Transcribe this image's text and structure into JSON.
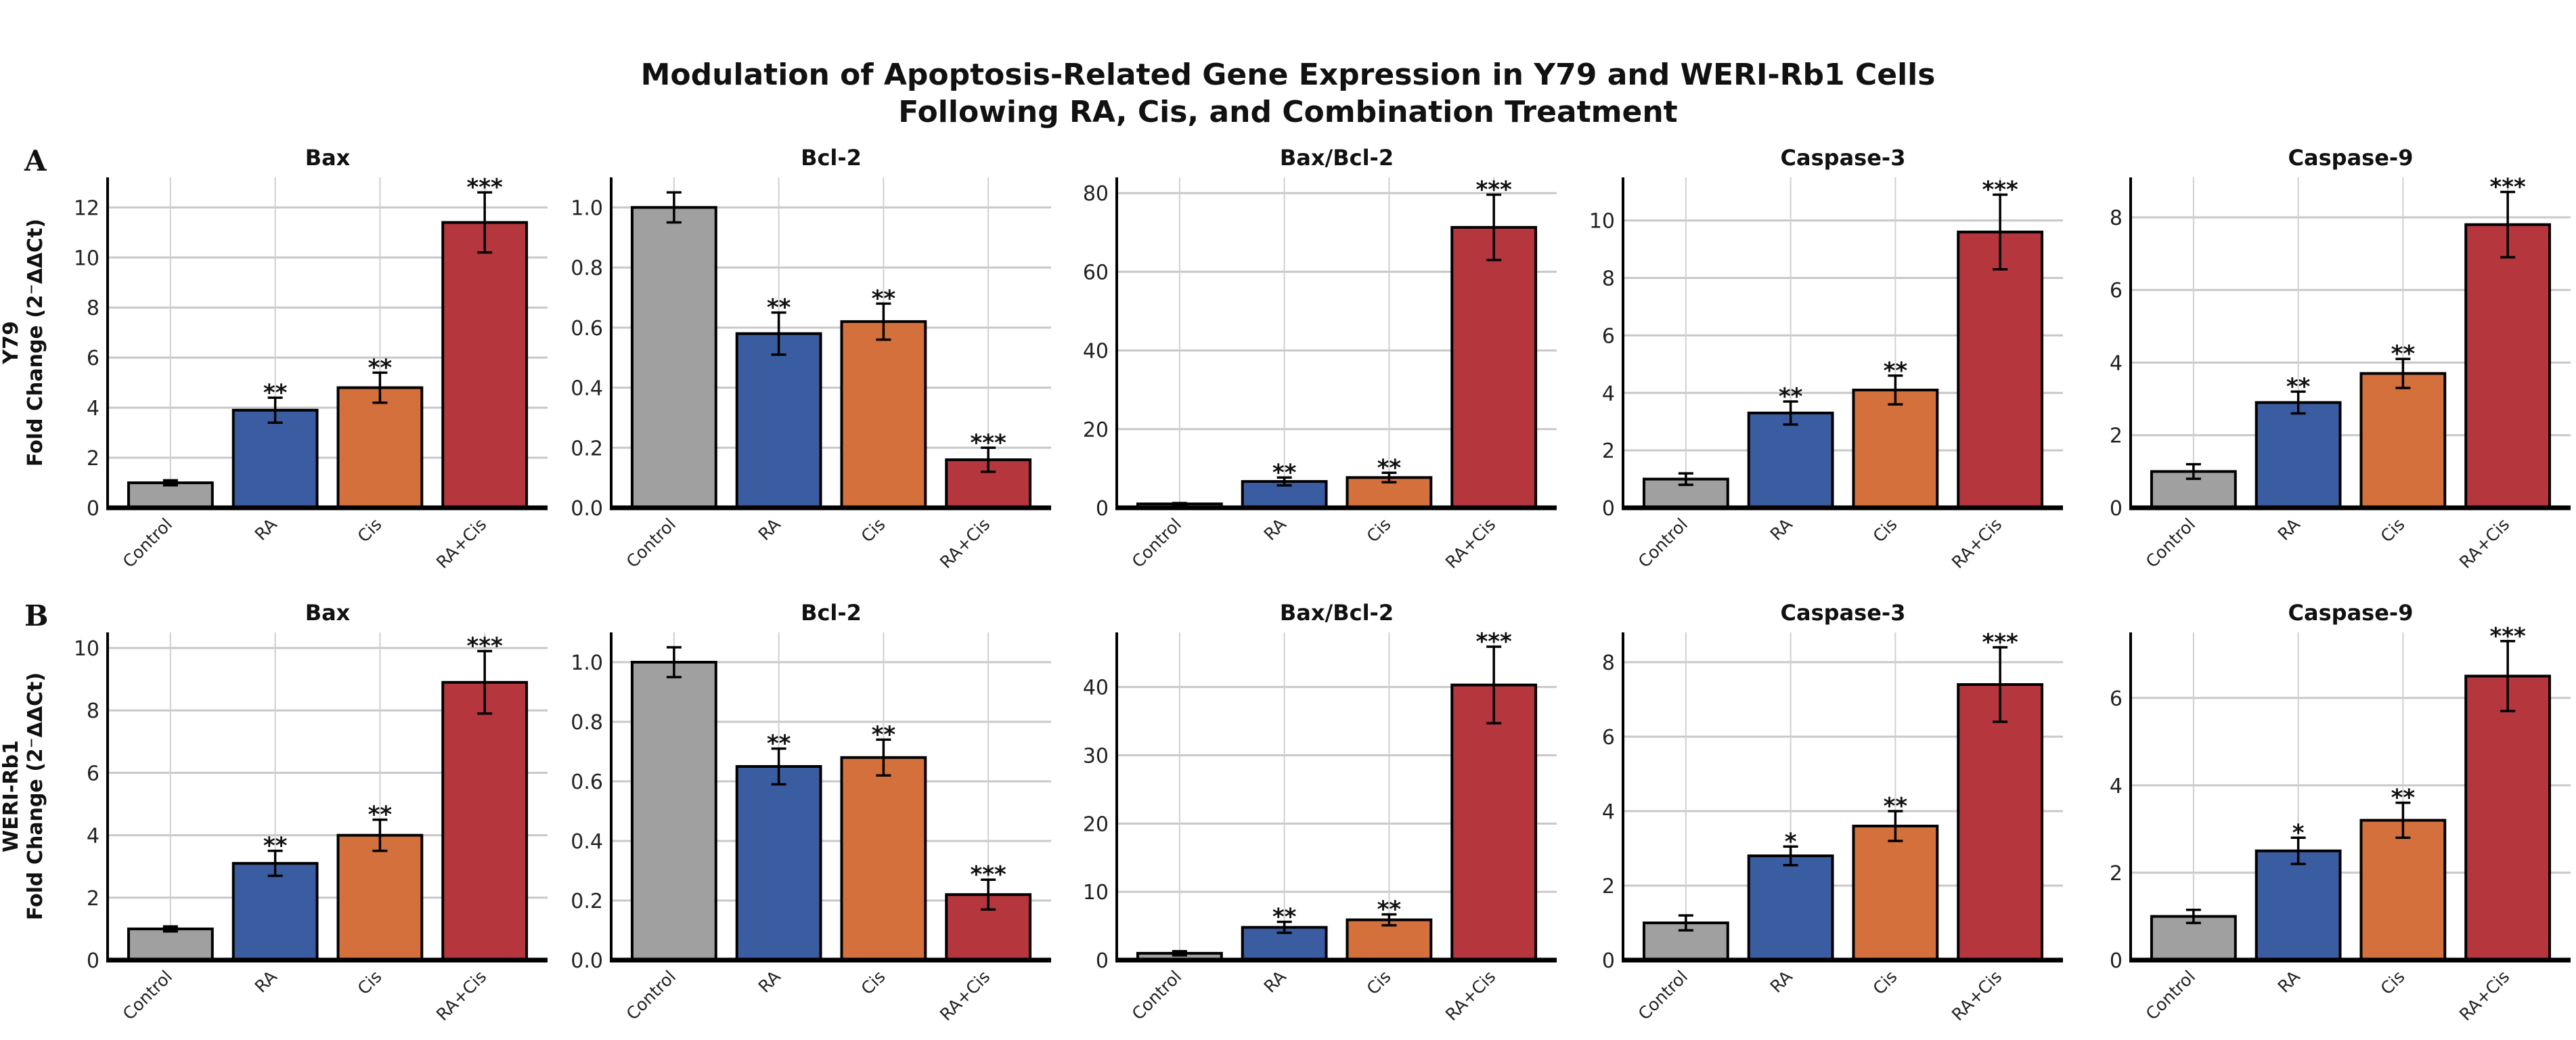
{
  "title_line1": "Modulation of Apoptosis-Related Gene Expression in Y79 and WERI-Rb1 Cells",
  "title_line2": "Following RA, Cis, and Combination Treatment",
  "colors": {
    "Control": "#a0a0a0",
    "RA": "#3a5ca0",
    "Cis": "#d4703c",
    "RA+Cis": "#b5363c"
  },
  "chart_data": [
    {
      "row_letter": "A",
      "cell_line": "Y79",
      "ylabel": "Fold Change (2⁻ΔΔCt)",
      "type": "bar",
      "panels": [
        {
          "title": "Bax",
          "categories": [
            "Control",
            "RA",
            "Cis",
            "RA+Cis"
          ],
          "values": [
            1.0,
            3.9,
            4.8,
            11.4
          ],
          "errors": [
            0.1,
            0.5,
            0.6,
            1.2
          ],
          "significance": [
            "",
            "**",
            "**",
            "***"
          ],
          "ylim": [
            0,
            13.2
          ],
          "yticks": [
            0,
            2,
            4,
            6,
            8,
            10,
            12
          ],
          "ytick_labels": [
            "0",
            "2",
            "4",
            "6",
            "8",
            "10",
            "12"
          ]
        },
        {
          "title": "Bcl-2",
          "categories": [
            "Control",
            "RA",
            "Cis",
            "RA+Cis"
          ],
          "values": [
            1.0,
            0.58,
            0.62,
            0.16
          ],
          "errors": [
            0.05,
            0.07,
            0.06,
            0.04
          ],
          "significance": [
            "",
            "**",
            "**",
            "***"
          ],
          "ylim": [
            0,
            1.1
          ],
          "yticks": [
            0,
            0.2,
            0.4,
            0.6,
            0.8,
            1.0
          ],
          "ytick_labels": [
            "0.0",
            "0.2",
            "0.4",
            "0.6",
            "0.8",
            "1.0"
          ]
        },
        {
          "title": "Bax/Bcl-2",
          "categories": [
            "Control",
            "RA",
            "Cis",
            "RA+Cis"
          ],
          "values": [
            1.0,
            6.7,
            7.7,
            71.3
          ],
          "errors": [
            0.2,
            1.0,
            1.2,
            8.3
          ],
          "significance": [
            "",
            "**",
            "**",
            "***"
          ],
          "ylim": [
            0,
            84
          ],
          "yticks": [
            0,
            20,
            40,
            60,
            80
          ],
          "ytick_labels": [
            "0",
            "20",
            "40",
            "60",
            "80"
          ]
        },
        {
          "title": "Caspase-3",
          "categories": [
            "Control",
            "RA",
            "Cis",
            "RA+Cis"
          ],
          "values": [
            1.0,
            3.3,
            4.1,
            9.6
          ],
          "errors": [
            0.2,
            0.4,
            0.5,
            1.3
          ],
          "significance": [
            "",
            "**",
            "**",
            "***"
          ],
          "ylim": [
            0,
            11.5
          ],
          "yticks": [
            0,
            2,
            4,
            6,
            8,
            10
          ],
          "ytick_labels": [
            "0",
            "2",
            "4",
            "6",
            "8",
            "10"
          ]
        },
        {
          "title": "Caspase-9",
          "categories": [
            "Control",
            "RA",
            "Cis",
            "RA+Cis"
          ],
          "values": [
            1.0,
            2.9,
            3.7,
            7.8
          ],
          "errors": [
            0.2,
            0.3,
            0.4,
            0.9
          ],
          "significance": [
            "",
            "**",
            "**",
            "***"
          ],
          "ylim": [
            0,
            9.1
          ],
          "yticks": [
            0,
            2,
            4,
            6,
            8
          ],
          "ytick_labels": [
            "0",
            "2",
            "4",
            "6",
            "8"
          ]
        }
      ]
    },
    {
      "row_letter": "B",
      "cell_line": "WERI-Rb1",
      "ylabel": "Fold Change (2⁻ΔΔCt)",
      "type": "bar",
      "panels": [
        {
          "title": "Bax",
          "categories": [
            "Control",
            "RA",
            "Cis",
            "RA+Cis"
          ],
          "values": [
            1.0,
            3.1,
            4.0,
            8.9
          ],
          "errors": [
            0.08,
            0.4,
            0.5,
            1.0
          ],
          "significance": [
            "",
            "**",
            "**",
            "***"
          ],
          "ylim": [
            0,
            10.5
          ],
          "yticks": [
            0,
            2,
            4,
            6,
            8,
            10
          ],
          "ytick_labels": [
            "0",
            "2",
            "4",
            "6",
            "8",
            "10"
          ]
        },
        {
          "title": "Bcl-2",
          "categories": [
            "Control",
            "RA",
            "Cis",
            "RA+Cis"
          ],
          "values": [
            1.0,
            0.65,
            0.68,
            0.22
          ],
          "errors": [
            0.05,
            0.06,
            0.06,
            0.05
          ],
          "significance": [
            "",
            "**",
            "**",
            "***"
          ],
          "ylim": [
            0,
            1.1
          ],
          "yticks": [
            0,
            0.2,
            0.4,
            0.6,
            0.8,
            1.0
          ],
          "ytick_labels": [
            "0.0",
            "0.2",
            "0.4",
            "0.6",
            "0.8",
            "1.0"
          ]
        },
        {
          "title": "Bax/Bcl-2",
          "categories": [
            "Control",
            "RA",
            "Cis",
            "RA+Cis"
          ],
          "values": [
            1.0,
            4.8,
            5.9,
            40.3
          ],
          "errors": [
            0.3,
            0.8,
            0.8,
            5.6
          ],
          "significance": [
            "",
            "**",
            "**",
            "***"
          ],
          "ylim": [
            0,
            48
          ],
          "yticks": [
            0,
            10,
            20,
            30,
            40
          ],
          "ytick_labels": [
            "0",
            "10",
            "20",
            "30",
            "40"
          ]
        },
        {
          "title": "Caspase-3",
          "categories": [
            "Control",
            "RA",
            "Cis",
            "RA+Cis"
          ],
          "values": [
            1.0,
            2.8,
            3.6,
            7.4
          ],
          "errors": [
            0.2,
            0.25,
            0.4,
            1.0
          ],
          "significance": [
            "",
            "*",
            "**",
            "***"
          ],
          "ylim": [
            0,
            8.8
          ],
          "yticks": [
            0,
            2,
            4,
            6,
            8
          ],
          "ytick_labels": [
            "0",
            "2",
            "4",
            "6",
            "8"
          ]
        },
        {
          "title": "Caspase-9",
          "categories": [
            "Control",
            "RA",
            "Cis",
            "RA+Cis"
          ],
          "values": [
            1.0,
            2.5,
            3.2,
            6.5
          ],
          "errors": [
            0.15,
            0.3,
            0.4,
            0.8
          ],
          "significance": [
            "",
            "*",
            "**",
            "***"
          ],
          "ylim": [
            0,
            7.5
          ],
          "yticks": [
            0,
            2,
            4,
            6
          ],
          "ytick_labels": [
            "0",
            "2",
            "4",
            "6"
          ]
        }
      ]
    }
  ]
}
